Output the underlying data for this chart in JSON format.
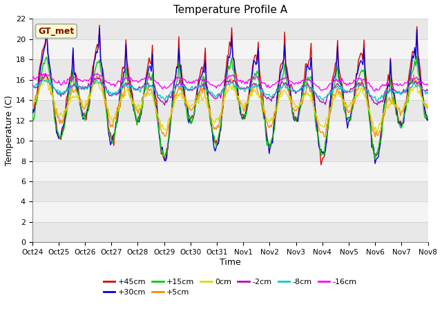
{
  "title": "Temperature Profile A",
  "xlabel": "Time",
  "ylabel": "Temperature (C)",
  "ylim": [
    0,
    22
  ],
  "yticks": [
    0,
    2,
    4,
    6,
    8,
    10,
    12,
    14,
    16,
    18,
    20,
    22
  ],
  "x_labels": [
    "Oct 24",
    "Oct 25",
    "Oct 26",
    "Oct 27",
    "Oct 28",
    "Oct 29",
    "Oct 30",
    "Oct 31",
    "Nov 1",
    "Nov 2",
    "Nov 3",
    "Nov 4",
    "Nov 5",
    "Nov 6",
    "Nov 7",
    "Nov 8"
  ],
  "annotation": "GT_met",
  "fig_bg_color": "#ffffff",
  "plot_bg_color": "#ffffff",
  "band_colors": [
    "#e8e8e8",
    "#f4f4f4"
  ],
  "grid_color": "#cccccc",
  "series": [
    {
      "label": "+45cm",
      "color": "#dd0000",
      "lw": 1.0
    },
    {
      "label": "+30cm",
      "color": "#0000dd",
      "lw": 1.0
    },
    {
      "label": "+15cm",
      "color": "#00cc00",
      "lw": 1.0
    },
    {
      "label": "+5cm",
      "color": "#ff8800",
      "lw": 1.0
    },
    {
      "label": "0cm",
      "color": "#dddd00",
      "lw": 1.0
    },
    {
      "label": "-2cm",
      "color": "#bb00bb",
      "lw": 1.0
    },
    {
      "label": "-8cm",
      "color": "#00cccc",
      "lw": 1.0
    },
    {
      "label": "-16cm",
      "color": "#ff00ff",
      "lw": 1.0
    }
  ],
  "figsize": [
    6.4,
    4.8
  ],
  "dpi": 100
}
